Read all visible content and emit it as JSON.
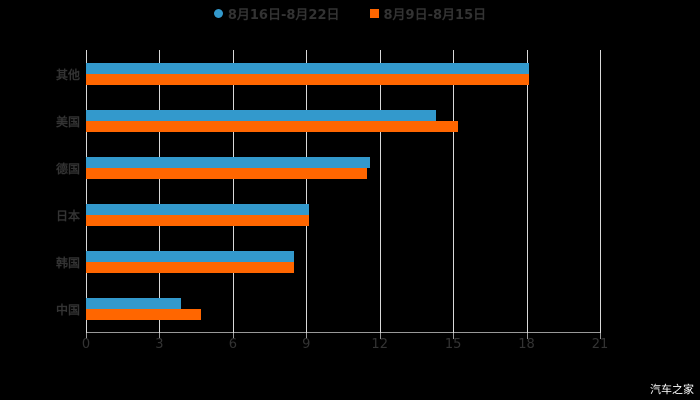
{
  "chart_data": {
    "type": "bar",
    "orientation": "horizontal",
    "title": "",
    "xlabel": "",
    "ylabel": "",
    "categories": [
      "其他",
      "美国",
      "德国",
      "日本",
      "韩国",
      "中国"
    ],
    "series": [
      {
        "name": "8月16日-8月22日",
        "color": "#3399cc",
        "values": [
          18.1,
          14.3,
          11.6,
          9.1,
          8.5,
          3.9
        ]
      },
      {
        "name": "8月9日-8月15日",
        "color": "#ff6600",
        "values": [
          18.1,
          15.2,
          11.5,
          9.1,
          8.5,
          4.7
        ]
      }
    ],
    "xlim": [
      0,
      21
    ],
    "xticks": [
      0,
      3,
      6,
      9,
      12,
      15,
      18,
      21
    ],
    "grid": true,
    "legend_position": "top"
  },
  "legend": {
    "series_1": "8月16日-8月22日",
    "series_2": "8月9日-8月15日"
  },
  "watermark": "汽车之家",
  "colors": {
    "series_1": "#3399cc",
    "series_2": "#ff6600",
    "background": "#000000"
  }
}
